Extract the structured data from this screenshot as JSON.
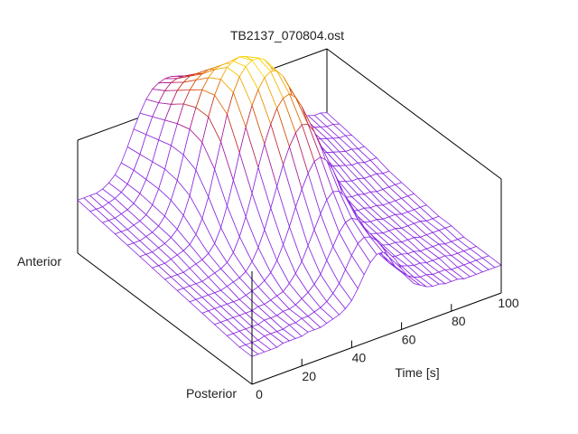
{
  "chart_data": {
    "type": "surface",
    "title": "TB2137_070804.ost",
    "xlabel": "Time [s]",
    "y_labels": {
      "front": "Posterior",
      "back": "Anterior"
    },
    "x_ticks": [
      "0",
      "20",
      "40",
      "60",
      "80",
      "100"
    ],
    "xlim": [
      0,
      100
    ],
    "grid": false,
    "colormap": [
      "#8a2be2",
      "#b0158c",
      "#d23a00",
      "#ee9a00",
      "#ffe000"
    ],
    "surface": {
      "x": [
        0,
        2.5,
        5,
        7.5,
        10,
        12.5,
        15,
        17.5,
        20,
        22.5,
        25,
        27.5,
        30,
        32.5,
        35,
        37.5,
        40,
        42.5,
        45,
        47.5,
        50,
        52.5,
        55,
        57.5,
        60,
        62.5,
        65,
        67.5,
        70,
        72.5,
        75,
        77.5,
        80,
        82.5,
        85,
        87.5,
        90,
        92.5,
        95,
        97.5,
        100
      ],
      "description_rows": "rows run from Posterior (row 0) to Anterior (last row)",
      "z_range": [
        0,
        1
      ],
      "rows": [
        [
          0.05,
          0.05,
          0.05,
          0.05,
          0.05,
          0.06,
          0.06,
          0.06,
          0.06,
          0.07,
          0.07,
          0.07,
          0.08,
          0.09,
          0.1,
          0.12,
          0.15,
          0.2,
          0.26,
          0.31,
          0.34,
          0.34,
          0.32,
          0.28,
          0.22,
          0.17,
          0.12,
          0.1,
          0.08,
          0.07,
          0.07,
          0.06,
          0.06,
          0.06,
          0.05,
          0.05,
          0.05,
          0.05,
          0.05,
          0.05,
          0.05
        ],
        [
          0.05,
          0.05,
          0.05,
          0.05,
          0.06,
          0.06,
          0.06,
          0.06,
          0.07,
          0.07,
          0.08,
          0.08,
          0.09,
          0.1,
          0.12,
          0.15,
          0.19,
          0.25,
          0.31,
          0.36,
          0.38,
          0.37,
          0.34,
          0.29,
          0.23,
          0.17,
          0.13,
          0.1,
          0.08,
          0.07,
          0.07,
          0.06,
          0.06,
          0.06,
          0.05,
          0.05,
          0.05,
          0.05,
          0.05,
          0.05,
          0.05
        ],
        [
          0.06,
          0.06,
          0.06,
          0.06,
          0.06,
          0.06,
          0.07,
          0.07,
          0.07,
          0.08,
          0.08,
          0.09,
          0.11,
          0.13,
          0.16,
          0.2,
          0.26,
          0.32,
          0.38,
          0.42,
          0.43,
          0.41,
          0.36,
          0.3,
          0.24,
          0.18,
          0.13,
          0.1,
          0.09,
          0.08,
          0.07,
          0.07,
          0.06,
          0.06,
          0.06,
          0.06,
          0.05,
          0.05,
          0.05,
          0.05,
          0.05
        ],
        [
          0.07,
          0.07,
          0.07,
          0.07,
          0.07,
          0.07,
          0.07,
          0.08,
          0.08,
          0.09,
          0.1,
          0.11,
          0.14,
          0.18,
          0.23,
          0.3,
          0.37,
          0.44,
          0.5,
          0.53,
          0.52,
          0.48,
          0.42,
          0.34,
          0.26,
          0.19,
          0.14,
          0.11,
          0.09,
          0.08,
          0.08,
          0.07,
          0.07,
          0.06,
          0.06,
          0.06,
          0.06,
          0.05,
          0.05,
          0.05,
          0.05
        ],
        [
          0.08,
          0.08,
          0.08,
          0.08,
          0.08,
          0.08,
          0.08,
          0.09,
          0.1,
          0.11,
          0.13,
          0.16,
          0.21,
          0.28,
          0.36,
          0.45,
          0.53,
          0.6,
          0.65,
          0.66,
          0.63,
          0.57,
          0.48,
          0.38,
          0.29,
          0.21,
          0.15,
          0.12,
          0.1,
          0.09,
          0.08,
          0.08,
          0.07,
          0.07,
          0.07,
          0.06,
          0.06,
          0.06,
          0.06,
          0.06,
          0.06
        ],
        [
          0.09,
          0.09,
          0.09,
          0.09,
          0.09,
          0.09,
          0.1,
          0.11,
          0.12,
          0.14,
          0.18,
          0.24,
          0.32,
          0.42,
          0.52,
          0.62,
          0.7,
          0.76,
          0.79,
          0.78,
          0.73,
          0.65,
          0.54,
          0.42,
          0.31,
          0.23,
          0.17,
          0.13,
          0.11,
          0.1,
          0.09,
          0.08,
          0.08,
          0.08,
          0.07,
          0.07,
          0.07,
          0.07,
          0.06,
          0.06,
          0.06
        ],
        [
          0.1,
          0.1,
          0.1,
          0.1,
          0.1,
          0.11,
          0.12,
          0.13,
          0.15,
          0.19,
          0.26,
          0.35,
          0.46,
          0.58,
          0.69,
          0.78,
          0.85,
          0.89,
          0.9,
          0.87,
          0.81,
          0.71,
          0.59,
          0.46,
          0.34,
          0.25,
          0.18,
          0.14,
          0.12,
          0.11,
          0.1,
          0.09,
          0.09,
          0.08,
          0.08,
          0.08,
          0.07,
          0.07,
          0.07,
          0.07,
          0.07
        ],
        [
          0.11,
          0.11,
          0.11,
          0.11,
          0.12,
          0.13,
          0.14,
          0.16,
          0.2,
          0.27,
          0.37,
          0.49,
          0.62,
          0.74,
          0.84,
          0.91,
          0.96,
          0.98,
          0.97,
          0.93,
          0.86,
          0.75,
          0.62,
          0.49,
          0.37,
          0.27,
          0.2,
          0.16,
          0.13,
          0.12,
          0.11,
          0.1,
          0.1,
          0.09,
          0.09,
          0.08,
          0.08,
          0.08,
          0.08,
          0.08,
          0.08
        ],
        [
          0.12,
          0.12,
          0.12,
          0.13,
          0.14,
          0.15,
          0.17,
          0.21,
          0.28,
          0.38,
          0.51,
          0.64,
          0.77,
          0.87,
          0.94,
          0.98,
          1.0,
          1.0,
          0.98,
          0.93,
          0.86,
          0.76,
          0.64,
          0.52,
          0.41,
          0.31,
          0.24,
          0.19,
          0.16,
          0.14,
          0.13,
          0.12,
          0.11,
          0.11,
          0.1,
          0.1,
          0.09,
          0.09,
          0.09,
          0.09,
          0.09
        ],
        [
          0.13,
          0.13,
          0.13,
          0.14,
          0.15,
          0.17,
          0.2,
          0.26,
          0.35,
          0.47,
          0.6,
          0.72,
          0.82,
          0.89,
          0.94,
          0.96,
          0.97,
          0.96,
          0.93,
          0.88,
          0.81,
          0.72,
          0.63,
          0.54,
          0.45,
          0.37,
          0.3,
          0.25,
          0.21,
          0.18,
          0.16,
          0.15,
          0.14,
          0.13,
          0.12,
          0.12,
          0.11,
          0.11,
          0.11,
          0.1,
          0.1
        ],
        [
          0.14,
          0.14,
          0.14,
          0.15,
          0.16,
          0.18,
          0.22,
          0.29,
          0.38,
          0.5,
          0.62,
          0.72,
          0.8,
          0.85,
          0.88,
          0.89,
          0.89,
          0.87,
          0.84,
          0.8,
          0.74,
          0.67,
          0.6,
          0.53,
          0.47,
          0.41,
          0.35,
          0.3,
          0.26,
          0.23,
          0.2,
          0.18,
          0.17,
          0.16,
          0.15,
          0.14,
          0.13,
          0.13,
          0.12,
          0.12,
          0.12
        ],
        [
          0.15,
          0.15,
          0.15,
          0.16,
          0.17,
          0.19,
          0.23,
          0.3,
          0.39,
          0.5,
          0.6,
          0.69,
          0.75,
          0.79,
          0.81,
          0.82,
          0.81,
          0.79,
          0.76,
          0.72,
          0.67,
          0.62,
          0.57,
          0.52,
          0.48,
          0.44,
          0.4,
          0.36,
          0.32,
          0.28,
          0.25,
          0.22,
          0.2,
          0.18,
          0.17,
          0.16,
          0.15,
          0.14,
          0.14,
          0.13,
          0.13
        ],
        [
          0.16,
          0.16,
          0.16,
          0.17,
          0.18,
          0.2,
          0.24,
          0.3,
          0.38,
          0.48,
          0.57,
          0.64,
          0.7,
          0.73,
          0.75,
          0.75,
          0.74,
          0.72,
          0.69,
          0.66,
          0.62,
          0.58,
          0.55,
          0.52,
          0.49,
          0.46,
          0.43,
          0.4,
          0.36,
          0.32,
          0.28,
          0.25,
          0.22,
          0.2,
          0.19,
          0.18,
          0.17,
          0.16,
          0.15,
          0.15,
          0.14
        ],
        [
          0.17,
          0.17,
          0.17,
          0.18,
          0.19,
          0.21,
          0.24,
          0.3,
          0.37,
          0.46,
          0.54,
          0.6,
          0.65,
          0.68,
          0.69,
          0.69,
          0.68,
          0.66,
          0.64,
          0.61,
          0.58,
          0.56,
          0.54,
          0.52,
          0.5,
          0.48,
          0.45,
          0.42,
          0.38,
          0.34,
          0.3,
          0.27,
          0.24,
          0.22,
          0.2,
          0.19,
          0.18,
          0.17,
          0.16,
          0.16,
          0.15
        ],
        [
          0.18,
          0.18,
          0.18,
          0.18,
          0.19,
          0.21,
          0.24,
          0.29,
          0.36,
          0.44,
          0.51,
          0.57,
          0.61,
          0.63,
          0.64,
          0.64,
          0.63,
          0.61,
          0.59,
          0.57,
          0.55,
          0.54,
          0.53,
          0.52,
          0.51,
          0.49,
          0.46,
          0.43,
          0.39,
          0.35,
          0.31,
          0.28,
          0.25,
          0.23,
          0.21,
          0.2,
          0.19,
          0.18,
          0.17,
          0.17,
          0.16
        ]
      ]
    }
  }
}
